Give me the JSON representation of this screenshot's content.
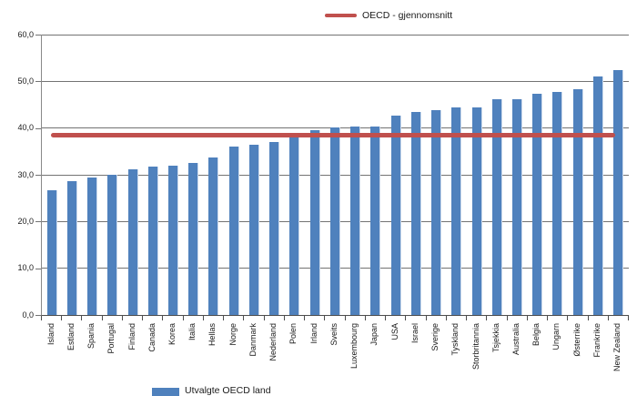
{
  "chart_data": {
    "type": "bar",
    "title": "",
    "xlabel": "",
    "ylabel": "",
    "ylim": [
      0,
      60
    ],
    "ytick_step": 10,
    "ytick_labels": [
      "0,0",
      "10,0",
      "20,0",
      "30,0",
      "40,0",
      "50,0",
      "60,0"
    ],
    "grid": true,
    "legend_position": "top",
    "legend": [
      "Utvalgte OECD land",
      "OECD - gjennomsnitt"
    ],
    "categories": [
      "Island",
      "Estland",
      "Spania",
      "Portugal",
      "Finland",
      "Canada",
      "Korea",
      "Italia",
      "Hellas",
      "Norge",
      "Danmark",
      "Nederland",
      "Polen",
      "Irland",
      "Sveits",
      "Luxembourg",
      "Japan",
      "USA",
      "Israel",
      "Sverige",
      "Tyskland",
      "Storbritannia",
      "Tsjekkia",
      "Australia",
      "Belgia",
      "Ungarn",
      "Østerrike",
      "Frankrike",
      "New Zealand"
    ],
    "series": [
      {
        "name": "Utvalgte OECD land",
        "type": "bar",
        "color": "#4f81bd",
        "values": [
          26.6,
          28.6,
          29.4,
          30.0,
          31.1,
          31.8,
          32.0,
          32.5,
          33.7,
          36.1,
          36.5,
          37.0,
          38.4,
          39.6,
          40.1,
          40.3,
          40.4,
          42.6,
          43.4,
          43.9,
          44.5,
          44.4,
          46.2,
          46.1,
          47.3,
          47.7,
          48.3,
          51.0,
          52.5
        ]
      }
    ],
    "reference_line": {
      "name": "OECD - gjennomsnitt",
      "value": 38.4,
      "color": "#c0504d"
    },
    "colors": {
      "bar": "#4f81bd",
      "bar_edge": "#ccdaec",
      "reference": "#c0504d",
      "gridline": "#737373",
      "axis": "#4d4d4d",
      "text": "#1a1a1a"
    }
  },
  "legend": {
    "bars_label": "Utvalgte OECD land",
    "line_label": "OECD - gjennomsnitt"
  }
}
